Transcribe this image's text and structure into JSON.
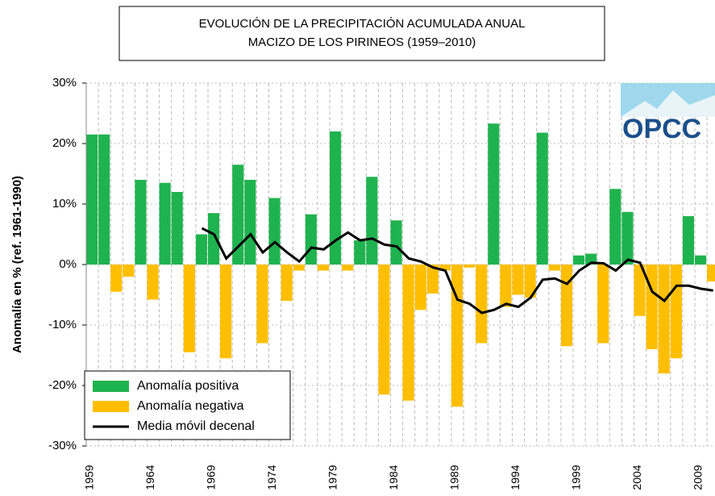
{
  "chart_data": {
    "type": "bar",
    "title": "EVOLUCIÓN DE LA PRECIPITACIÓN  ACUMULADA ANUAL",
    "subtitle": "MACIZO DE LOS PIRINEOS   (1959–2010)",
    "y_label": "Anomalía en % (ref. 1961-1990)",
    "logo": "OPCC",
    "categories": [
      "1959",
      null,
      null,
      null,
      null,
      "1964",
      null,
      null,
      null,
      null,
      "1969",
      null,
      null,
      null,
      null,
      "1974",
      null,
      null,
      null,
      null,
      "1979",
      null,
      null,
      null,
      null,
      "1984",
      null,
      null,
      null,
      null,
      "1989",
      null,
      null,
      null,
      null,
      "1994",
      null,
      null,
      null,
      null,
      "1999",
      null,
      null,
      null,
      null,
      "2004",
      null,
      null,
      null,
      null,
      "2009",
      null
    ],
    "series": [
      {
        "name": "Anomalía positiva",
        "color": "#1fb34f",
        "values": [
          21.5,
          21.5,
          null,
          null,
          14,
          null,
          13.5,
          12,
          null,
          5,
          8.5,
          null,
          16.5,
          14,
          null,
          11,
          null,
          null,
          8.3,
          null,
          22,
          null,
          4,
          14.5,
          null,
          7.3,
          null,
          null,
          null,
          null,
          null,
          null,
          null,
          23.3,
          null,
          null,
          null,
          21.8,
          null,
          null,
          1.5,
          1.8,
          null,
          12.5,
          8.7,
          null,
          null,
          null,
          null,
          8,
          1.5,
          null
        ]
      },
      {
        "name": "Anomalía negativa",
        "color": "#ffbf00",
        "values": [
          null,
          null,
          -4.5,
          -2,
          null,
          -5.8,
          null,
          null,
          -14.5,
          null,
          null,
          -15.5,
          null,
          null,
          -13,
          null,
          -6,
          -1,
          null,
          -1,
          null,
          -1,
          null,
          null,
          -21.5,
          null,
          -22.5,
          -7.5,
          -4.8,
          -1,
          -23.5,
          -0.5,
          -13,
          null,
          -7,
          -5,
          -5.5,
          null,
          -1,
          -13.5,
          null,
          null,
          -13,
          null,
          null,
          -8.5,
          -14,
          -18,
          -15.5,
          null,
          null,
          -2.8
        ]
      },
      {
        "name": "Media móvil decenal",
        "type": "line",
        "color": "#000000",
        "values": [
          null,
          null,
          null,
          null,
          null,
          null,
          null,
          null,
          null,
          6,
          5,
          1,
          3,
          5,
          2,
          3.7,
          2,
          0.5,
          2.8,
          2.5,
          4,
          5.3,
          4,
          4.3,
          3.3,
          3,
          1,
          0.5,
          -0.5,
          -1,
          -5.8,
          -6.5,
          -8,
          -7.5,
          -6.5,
          -7,
          -5.5,
          -2.5,
          -2.3,
          -3.2,
          -1,
          0.3,
          0.2,
          -1,
          0.8,
          0.3,
          -4.5,
          -6,
          -3.5,
          -3.5,
          -4,
          -4.3
        ]
      }
    ],
    "ylim": [
      -30,
      30
    ],
    "yticks": [
      {
        "value": -30,
        "label": "-30%"
      },
      {
        "value": -20,
        "label": "-20%"
      },
      {
        "value": -10,
        "label": "-10%"
      },
      {
        "value": 0,
        "label": "0%"
      },
      {
        "value": 10,
        "label": "10%"
      },
      {
        "value": 20,
        "label": "20%"
      },
      {
        "value": 30,
        "label": "30%"
      }
    ],
    "grid": true,
    "legend": "lower left"
  }
}
